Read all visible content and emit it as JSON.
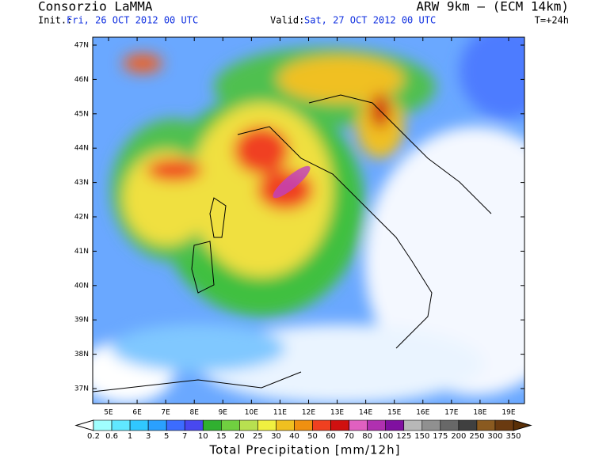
{
  "header": {
    "title": "Consorzio LaMMA",
    "model": "ARW 9km – (ECM 14km)",
    "init_label": "Init.:",
    "init": "Fri, 26 OCT 2012  00 UTC",
    "valid_label": "Valid:",
    "valid": "Sat, 27 OCT 2012  00 UTC",
    "step": "T=+24h"
  },
  "map": {
    "lat_labels": [
      "47N",
      "46N",
      "45N",
      "44N",
      "43N",
      "42N",
      "41N",
      "40N",
      "39N",
      "38N",
      "37N"
    ],
    "lon_labels": [
      "5E",
      "6E",
      "7E",
      "8E",
      "9E",
      "10E",
      "11E",
      "12E",
      "13E",
      "14E",
      "15E",
      "16E",
      "17E",
      "18E",
      "19E"
    ]
  },
  "colorbar": {
    "title": "Total Precipitation [mm/12h]",
    "labels": [
      "0.2",
      "0.6",
      "1",
      "3",
      "5",
      "7",
      "10",
      "15",
      "20",
      "25",
      "30",
      "40",
      "50",
      "60",
      "70",
      "80",
      "100",
      "125",
      "150",
      "175",
      "200",
      "250",
      "300",
      "350"
    ],
    "colors": [
      "#a0ffff",
      "#60e8ff",
      "#30c8ff",
      "#2aa0ff",
      "#3c6cff",
      "#4848f0",
      "#30b030",
      "#70d040",
      "#b8e050",
      "#f0f040",
      "#f0c020",
      "#f09010",
      "#f04020",
      "#d01010",
      "#e060c0",
      "#b030b0",
      "#8010a0",
      "#b8b8b8",
      "#909090",
      "#686868",
      "#404040",
      "#8a5a20",
      "#6a3a10"
    ],
    "low_color": "#ffffff",
    "high_color": "#5a3008"
  }
}
